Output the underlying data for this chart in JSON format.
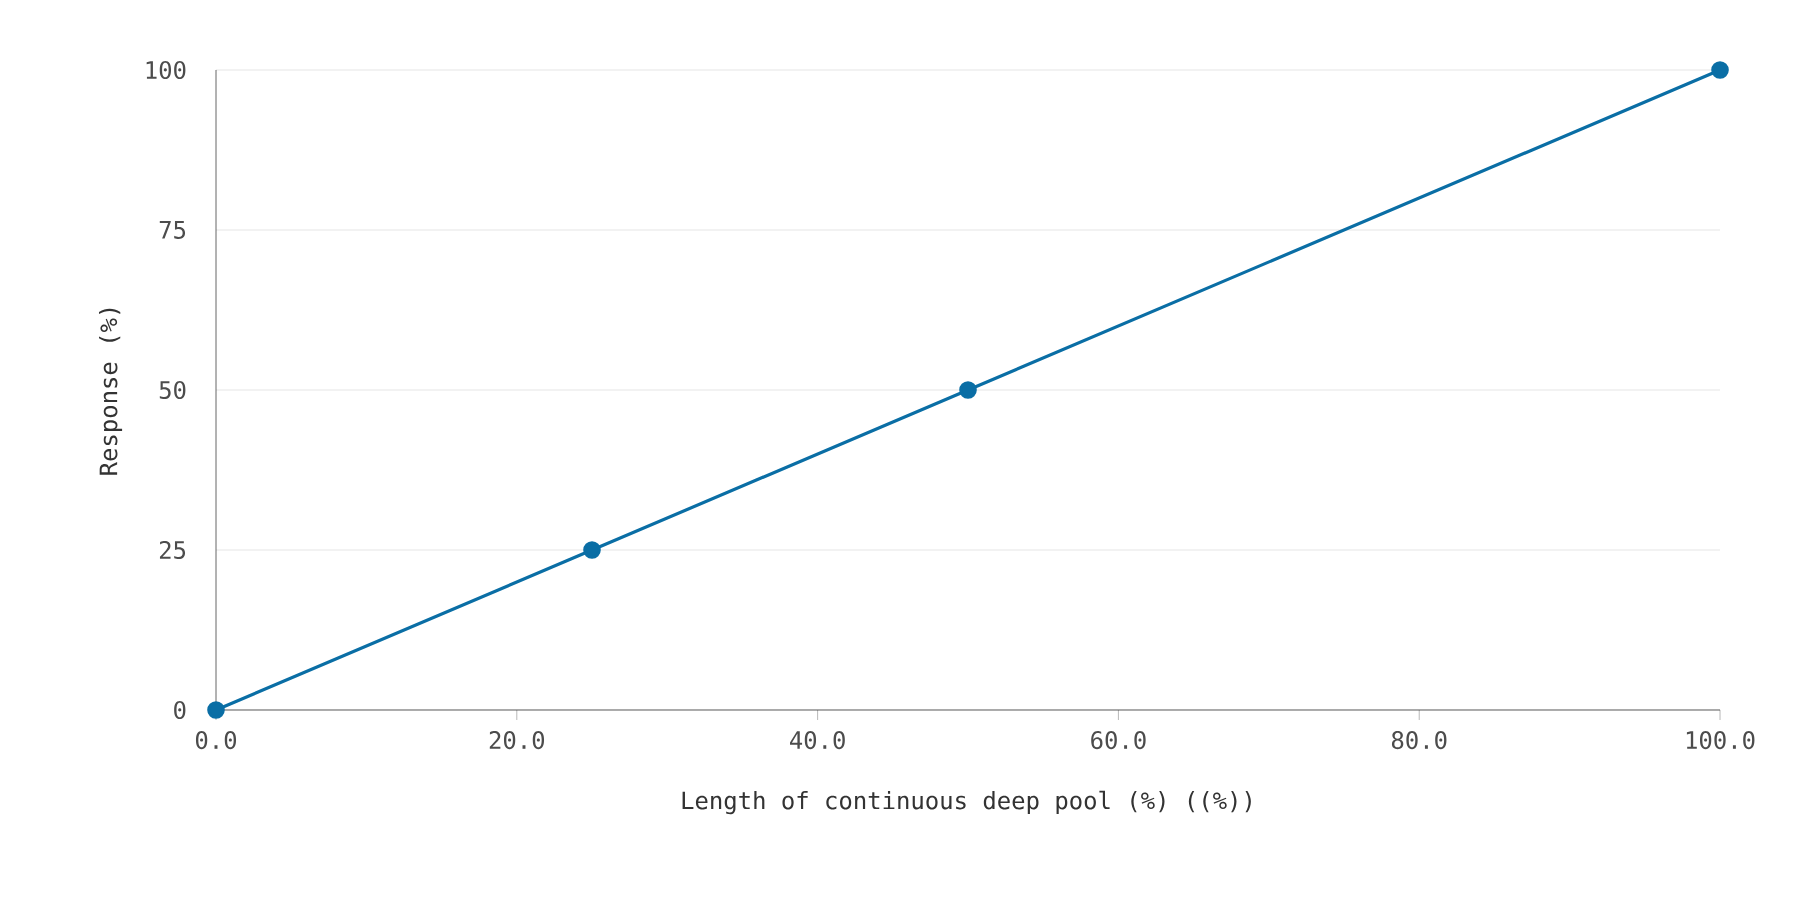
{
  "chart_data": {
    "type": "line",
    "xlabel": "Length of continuous deep pool (%) ((%))",
    "ylabel": "Response (%)",
    "x": [
      0,
      25,
      50,
      100
    ],
    "series": [
      {
        "color": "#0a6ea5",
        "values": [
          0,
          25,
          50,
          100
        ]
      }
    ],
    "xlim": [
      0,
      100
    ],
    "ylim": [
      0,
      100
    ],
    "xticks": [
      {
        "value": 0,
        "label": "0.0"
      },
      {
        "value": 20,
        "label": "20.0"
      },
      {
        "value": 40,
        "label": "40.0"
      },
      {
        "value": 60,
        "label": "60.0"
      },
      {
        "value": 80,
        "label": "80.0"
      },
      {
        "value": 100,
        "label": "100.0"
      }
    ],
    "yticks": [
      0,
      25,
      50,
      75,
      100
    ],
    "grid": "y",
    "marker": "circle",
    "line_style": "solid"
  }
}
